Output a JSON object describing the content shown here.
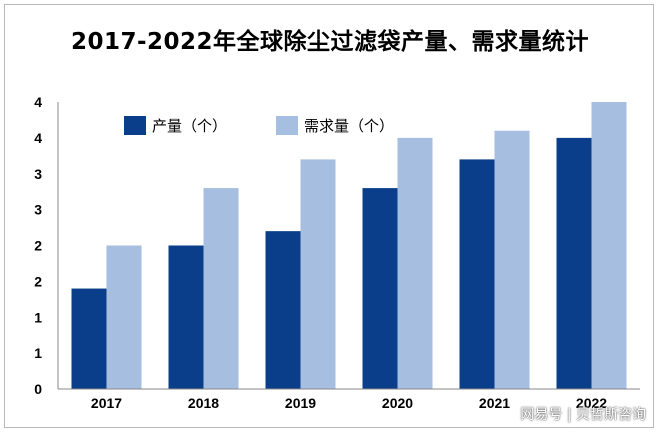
{
  "title": "2017-2022年全球除尘过滤袋产量、需求量统计",
  "watermark": "网易号 | 贝哲斯咨询",
  "chart_data": {
    "type": "bar",
    "categories": [
      "2017",
      "2018",
      "2019",
      "2020",
      "2021",
      "2022"
    ],
    "series": [
      {
        "name": "产量（个）",
        "color": "#0a3e8a",
        "values": [
          1.4,
          2.0,
          2.2,
          2.8,
          3.2,
          3.5
        ]
      },
      {
        "name": "需求量（个）",
        "color": "#a6bee0",
        "values": [
          2.0,
          2.8,
          3.2,
          3.5,
          3.6,
          4.0
        ]
      }
    ],
    "ytick_labels": [
      "0",
      "1",
      "1",
      "2",
      "2",
      "3",
      "3",
      "4",
      "4"
    ],
    "ylim": [
      0,
      4
    ],
    "grid": false,
    "legend_position": "top-left"
  }
}
